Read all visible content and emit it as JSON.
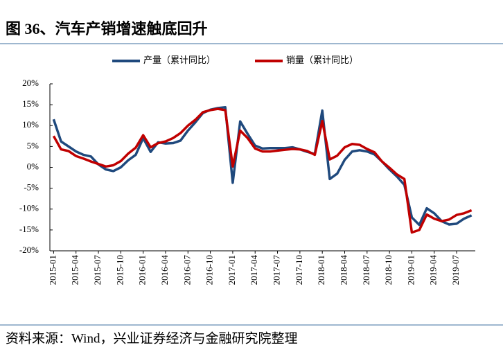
{
  "title": "图 36、汽车产销增速触底回升",
  "source": "资料来源：Wind，兴业证券经济与金融研究院整理",
  "chart_data": {
    "type": "line",
    "categories": [
      "2015-01",
      null,
      null,
      "2015-04",
      null,
      null,
      "2015-07",
      null,
      null,
      "2015-10",
      null,
      null,
      "2016-01",
      null,
      null,
      "2016-04",
      null,
      null,
      "2016-07",
      null,
      null,
      "2016-10",
      null,
      null,
      "2017-01",
      null,
      null,
      "2017-04",
      null,
      null,
      "2017-07",
      null,
      null,
      "2017-10",
      null,
      null,
      "2018-01",
      null,
      null,
      "2018-04",
      null,
      null,
      "2018-07",
      null,
      null,
      "2018-10",
      null,
      null,
      "2019-01",
      null,
      null,
      "2019-04",
      null,
      null,
      "2019-07",
      null,
      null
    ],
    "series": [
      {
        "name": "产量（累计同比）",
        "color": "#1f497d",
        "values": [
          11.5,
          6.2,
          5.0,
          3.8,
          3.0,
          2.6,
          0.7,
          -0.5,
          -0.9,
          0.0,
          1.7,
          3.0,
          7.0,
          3.7,
          6.0,
          5.7,
          5.8,
          6.4,
          8.8,
          10.8,
          13.0,
          13.8,
          14.2,
          14.4,
          -3.7,
          11.0,
          8.0,
          5.2,
          4.5,
          4.6,
          4.6,
          4.6,
          4.8,
          4.3,
          3.7,
          3.2,
          13.6,
          -2.8,
          -1.5,
          1.8,
          3.8,
          4.1,
          3.8,
          3.1,
          1.4,
          -0.5,
          -2.2,
          -4.2,
          -12.0,
          -13.8,
          -9.8,
          -11.0,
          -12.9,
          -13.7,
          -13.5,
          -12.3,
          -11.5
        ]
      },
      {
        "name": "销量（累计同比）",
        "color": "#c00000",
        "values": [
          7.5,
          4.3,
          3.9,
          2.7,
          2.1,
          1.4,
          0.8,
          0.2,
          0.5,
          1.5,
          3.3,
          4.7,
          7.7,
          4.8,
          5.8,
          6.2,
          7.0,
          8.2,
          10.0,
          11.4,
          13.2,
          13.7,
          14.0,
          13.7,
          0.2,
          8.8,
          7.0,
          4.5,
          3.8,
          3.8,
          4.0,
          4.2,
          4.4,
          4.3,
          3.9,
          3.0,
          11.1,
          1.9,
          2.8,
          4.8,
          5.6,
          5.4,
          4.4,
          3.6,
          1.4,
          -0.1,
          -1.7,
          -2.8,
          -15.6,
          -15.0,
          -11.3,
          -12.3,
          -12.9,
          -12.5,
          -11.4,
          -11.0,
          -10.3
        ]
      }
    ],
    "ylim": [
      -20,
      20
    ],
    "yticks": [
      {
        "value": -20,
        "label": "-20%"
      },
      {
        "value": -15,
        "label": "-15%"
      },
      {
        "value": -10,
        "label": "-10%"
      },
      {
        "value": -5,
        "label": "-5%"
      },
      {
        "value": 0,
        "label": "0%"
      },
      {
        "value": 5,
        "label": "5%"
      },
      {
        "value": 10,
        "label": "10%"
      },
      {
        "value": 15,
        "label": "15%"
      },
      {
        "value": 20,
        "label": "20%"
      }
    ],
    "legend": "top"
  }
}
